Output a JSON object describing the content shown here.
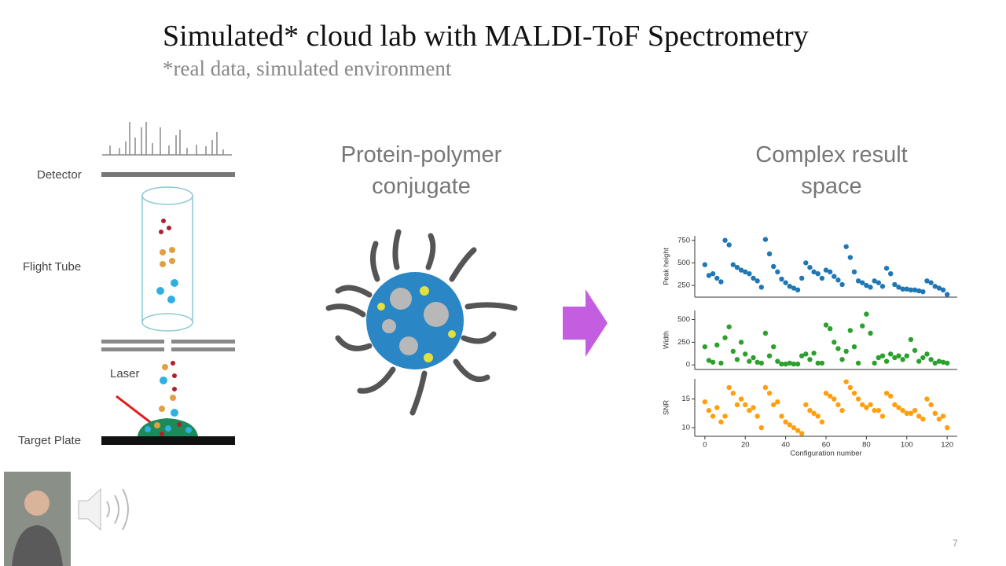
{
  "title": "Simulated* cloud lab with MALDI-ToF Spectrometry",
  "subtitle": "*real data, simulated environment",
  "diagram": {
    "labels": [
      "Detector",
      "Flight Tube",
      "Laser",
      "Target Plate"
    ]
  },
  "middle": {
    "heading": [
      "Protein-polymer",
      "conjugate"
    ]
  },
  "right": {
    "heading": [
      "Complex result",
      "space"
    ]
  },
  "slide_number": "7",
  "chart_data": [
    {
      "type": "scatter",
      "ylabel": "Peak height",
      "color": "#1f77b4",
      "x": [
        0,
        2,
        4,
        6,
        8,
        10,
        12,
        14,
        16,
        18,
        20,
        22,
        24,
        26,
        28,
        30,
        32,
        34,
        36,
        38,
        40,
        42,
        44,
        46,
        48,
        50,
        52,
        54,
        56,
        58,
        60,
        62,
        64,
        66,
        68,
        70,
        72,
        74,
        76,
        78,
        80,
        82,
        84,
        86,
        88,
        90,
        92,
        94,
        96,
        98,
        100,
        102,
        104,
        106,
        108,
        110,
        112,
        114,
        116,
        118,
        120
      ],
      "values": [
        480,
        360,
        380,
        330,
        290,
        750,
        700,
        480,
        450,
        420,
        400,
        380,
        330,
        300,
        230,
        760,
        600,
        460,
        400,
        320,
        280,
        240,
        220,
        200,
        330,
        500,
        450,
        400,
        380,
        330,
        420,
        400,
        350,
        310,
        260,
        680,
        560,
        400,
        300,
        280,
        250,
        230,
        300,
        280,
        240,
        440,
        380,
        260,
        230,
        210,
        210,
        200,
        200,
        190,
        180,
        300,
        280,
        240,
        220,
        200,
        150
      ],
      "xlim": [
        -5,
        125
      ],
      "ylim": [
        120,
        800
      ],
      "yticks": [
        250,
        500,
        750
      ]
    },
    {
      "type": "scatter",
      "ylabel": "Width",
      "color": "#2ca02c",
      "x": [
        0,
        2,
        4,
        6,
        8,
        10,
        12,
        14,
        16,
        18,
        20,
        22,
        24,
        26,
        28,
        30,
        32,
        34,
        36,
        38,
        40,
        42,
        44,
        46,
        48,
        50,
        52,
        54,
        56,
        58,
        60,
        62,
        64,
        66,
        68,
        70,
        72,
        74,
        76,
        78,
        80,
        82,
        84,
        86,
        88,
        90,
        92,
        94,
        96,
        98,
        100,
        102,
        104,
        106,
        108,
        110,
        112,
        114,
        116,
        118,
        120
      ],
      "values": [
        200,
        50,
        30,
        220,
        20,
        300,
        420,
        150,
        60,
        250,
        120,
        40,
        80,
        30,
        20,
        350,
        100,
        200,
        40,
        10,
        10,
        20,
        10,
        10,
        100,
        120,
        60,
        130,
        20,
        20,
        440,
        400,
        250,
        180,
        60,
        150,
        380,
        200,
        20,
        430,
        560,
        350,
        20,
        80,
        100,
        40,
        120,
        80,
        100,
        60,
        100,
        280,
        160,
        40,
        80,
        120,
        60,
        20,
        40,
        30,
        20
      ],
      "xlim": [
        -5,
        125
      ],
      "ylim": [
        -50,
        600
      ],
      "yticks": [
        0,
        250,
        500
      ]
    },
    {
      "type": "scatter",
      "ylabel": "SNR",
      "xlabel": "Configuration number",
      "color": "#ff9f0e",
      "x": [
        0,
        2,
        4,
        6,
        8,
        10,
        12,
        14,
        16,
        18,
        20,
        22,
        24,
        26,
        28,
        30,
        32,
        34,
        36,
        38,
        40,
        42,
        44,
        46,
        48,
        50,
        52,
        54,
        56,
        58,
        60,
        62,
        64,
        66,
        68,
        70,
        72,
        74,
        76,
        78,
        80,
        82,
        84,
        86,
        88,
        90,
        92,
        94,
        96,
        98,
        100,
        102,
        104,
        106,
        108,
        110,
        112,
        114,
        116,
        118,
        120
      ],
      "values": [
        14.5,
        13,
        12,
        13.5,
        11,
        12,
        17,
        16,
        14,
        15,
        14,
        13,
        13.5,
        12,
        10,
        17,
        16,
        14,
        14.5,
        12,
        11,
        10.5,
        10,
        9.5,
        9,
        14,
        13,
        12.5,
        12,
        11,
        16,
        15.5,
        15,
        14,
        13,
        18,
        17,
        16,
        15,
        14,
        13.5,
        14,
        13,
        13,
        12,
        16,
        15.5,
        14,
        13.5,
        13,
        12.5,
        12.5,
        13,
        12,
        11.5,
        15,
        14,
        12.5,
        11.5,
        12,
        10
      ],
      "xlim": [
        -5,
        125
      ],
      "ylim": [
        8.5,
        18.5
      ],
      "yticks": [
        10,
        15
      ],
      "xticks": [
        0,
        20,
        40,
        60,
        80,
        100,
        120
      ]
    }
  ]
}
